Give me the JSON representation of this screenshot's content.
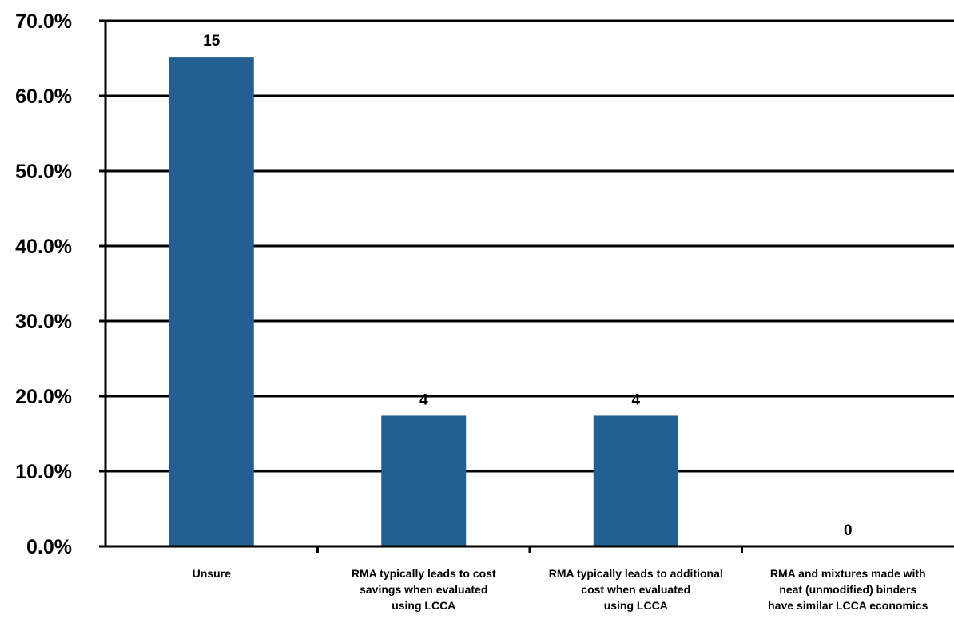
{
  "chart_data": {
    "type": "bar",
    "categories": [
      [
        "Unsure"
      ],
      [
        "RMA typically leads to cost",
        "savings when evaluated",
        "using LCCA"
      ],
      [
        "RMA typically leads to additional",
        "cost when evaluated",
        "using LCCA"
      ],
      [
        "RMA and mixtures made with",
        "neat (unmodified) binders",
        "have similar LCCA economics"
      ]
    ],
    "values": [
      65.2,
      17.4,
      17.4,
      0.0
    ],
    "data_labels": [
      "15",
      "4",
      "4",
      "0"
    ],
    "y_ticks": [
      "0.0%",
      "10.0%",
      "20.0%",
      "30.0%",
      "40.0%",
      "50.0%",
      "60.0%",
      "70.0%"
    ],
    "ylim": [
      0,
      70
    ],
    "grid": true,
    "title": "",
    "xlabel": "",
    "ylabel": "",
    "colors": {
      "bar": "#245F91",
      "grid": "#000000",
      "axis": "#000000"
    }
  }
}
